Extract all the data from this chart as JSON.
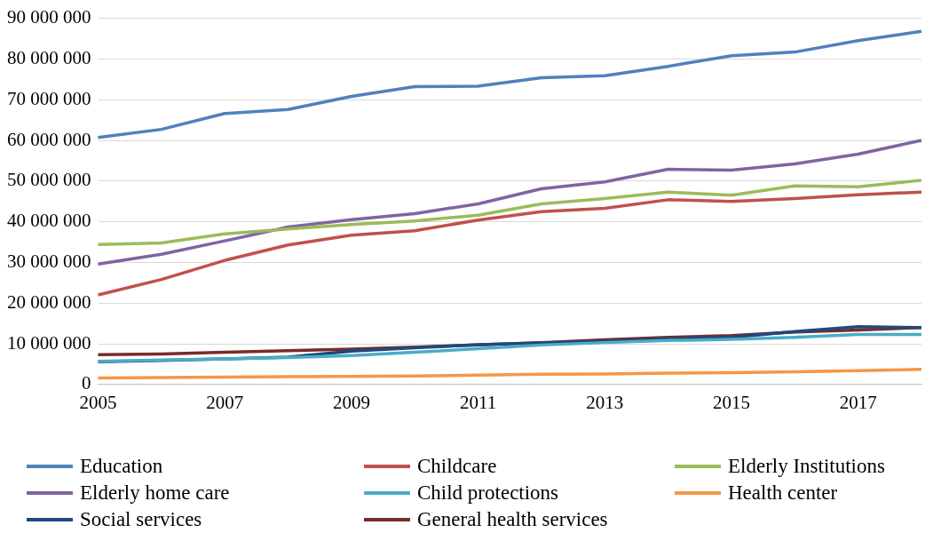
{
  "chart_data": {
    "type": "line",
    "categories": [
      "2005",
      null,
      "2007",
      null,
      "2009",
      null,
      "2011",
      null,
      "2013",
      null,
      "2015",
      null,
      "2017",
      null
    ],
    "ylim": [
      0,
      90000000
    ],
    "yticks": [
      {
        "value": 0,
        "label": "0"
      },
      {
        "value": 10000000,
        "label": "10 000 000"
      },
      {
        "value": 20000000,
        "label": "20 000 000"
      },
      {
        "value": 30000000,
        "label": "30 000 000"
      },
      {
        "value": 40000000,
        "label": "40 000 000"
      },
      {
        "value": 50000000,
        "label": "50 000 000"
      },
      {
        "value": 60000000,
        "label": "60 000 000"
      },
      {
        "value": 70000000,
        "label": "70 000 000"
      },
      {
        "value": 80000000,
        "label": "80 000 000"
      },
      {
        "value": 90000000,
        "label": "90 000 000"
      }
    ],
    "grid": "y",
    "legend": "bottom",
    "marker": "none",
    "line_style": "solid",
    "series": [
      {
        "name": "Education",
        "color": "#4f81bd",
        "values": [
          60700000,
          62700000,
          66600000,
          67600000,
          70800000,
          73200000,
          73300000,
          75400000,
          75900000,
          78200000,
          80800000,
          81700000,
          84500000,
          86800000
        ]
      },
      {
        "name": "Childcare",
        "color": "#c0504d",
        "values": [
          22000000,
          25800000,
          30500000,
          34300000,
          36700000,
          37800000,
          40400000,
          42500000,
          43300000,
          45400000,
          45000000,
          45700000,
          46600000,
          47300000
        ]
      },
      {
        "name": "Elderly Institutions",
        "color": "#9bbb59",
        "values": [
          34400000,
          34800000,
          37000000,
          38200000,
          39300000,
          40200000,
          41600000,
          44400000,
          45700000,
          47300000,
          46500000,
          48800000,
          48600000,
          50200000
        ]
      },
      {
        "name": "Elderly home care",
        "color": "#8064a2",
        "values": [
          29600000,
          32000000,
          35300000,
          38700000,
          40500000,
          42000000,
          44400000,
          48100000,
          49800000,
          52900000,
          52700000,
          54200000,
          56600000,
          60000000
        ]
      },
      {
        "name": "Child protections",
        "color": "#4bacc6",
        "values": [
          5700000,
          6000000,
          6300000,
          6600000,
          7100000,
          7900000,
          8800000,
          9700000,
          10300000,
          10800000,
          11100000,
          11600000,
          12300000,
          12300000
        ]
      },
      {
        "name": "Health center",
        "color": "#f79646",
        "values": [
          1600000,
          1700000,
          1800000,
          1900000,
          2000000,
          2100000,
          2300000,
          2500000,
          2600000,
          2800000,
          2900000,
          3100000,
          3400000,
          3700000
        ]
      },
      {
        "name": "Social services",
        "color": "#1f497d",
        "values": [
          5600000,
          5900000,
          6300000,
          6700000,
          8200000,
          9000000,
          9800000,
          10200000,
          10600000,
          11200000,
          11600000,
          13000000,
          14200000,
          14000000
        ]
      },
      {
        "name": "General health services",
        "color": "#772c2a",
        "values": [
          7300000,
          7500000,
          7900000,
          8300000,
          8700000,
          9200000,
          9700000,
          10300000,
          11000000,
          11600000,
          12000000,
          12900000,
          13400000,
          14000000
        ]
      }
    ]
  }
}
